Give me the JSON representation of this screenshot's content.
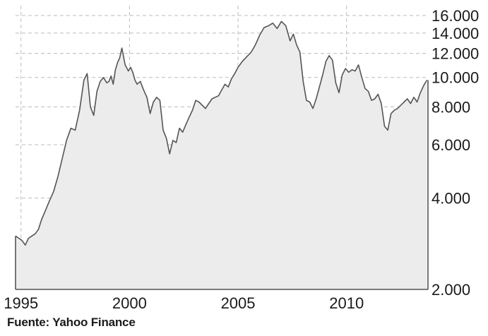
{
  "source": "Fuente: Yahoo Finance",
  "chart_data": {
    "type": "area",
    "scale": "log",
    "title": "",
    "xlabel": "",
    "ylabel": "",
    "xlim": [
      1994.75,
      2013.75
    ],
    "ylim": [
      2000,
      16000
    ],
    "grid": true,
    "x_ticks": [
      {
        "value": 1995,
        "label": "1995"
      },
      {
        "value": 2000,
        "label": "2000"
      },
      {
        "value": 2005,
        "label": "2005"
      },
      {
        "value": 2010,
        "label": "2010"
      }
    ],
    "y_ticks": [
      {
        "value": 2000,
        "label": "2.000"
      },
      {
        "value": 4000,
        "label": "4.000"
      },
      {
        "value": 6000,
        "label": "6.000"
      },
      {
        "value": 8000,
        "label": "8.000"
      },
      {
        "value": 10000,
        "label": "10.000"
      },
      {
        "value": 12000,
        "label": "12.000"
      },
      {
        "value": 14000,
        "label": "14.000"
      },
      {
        "value": 16000,
        "label": "16.000"
      }
    ],
    "colors": {
      "line": "#555555",
      "fill": "#ececec",
      "grid": "#bbbbbb",
      "axis": "#333333"
    },
    "series": [
      {
        "x": [
          1994.75,
          1994.9,
          1995.05,
          1995.2,
          1995.35,
          1995.5,
          1995.65,
          1995.8,
          1995.95,
          1996.1,
          1996.3,
          1996.5,
          1996.7,
          1996.9,
          1997.1,
          1997.3,
          1997.5,
          1997.7,
          1997.9,
          1998.05,
          1998.2,
          1998.35,
          1998.5,
          1998.65,
          1998.8,
          1998.95,
          1999.05,
          1999.15,
          1999.25,
          1999.35,
          1999.45,
          1999.55,
          1999.65,
          1999.8,
          1999.95,
          2000.05,
          2000.15,
          2000.25,
          2000.35,
          2000.5,
          2000.65,
          2000.8,
          2000.95,
          2001.1,
          2001.25,
          2001.4,
          2001.55,
          2001.7,
          2001.85,
          2002.0,
          2002.15,
          2002.3,
          2002.45,
          2002.6,
          2002.75,
          2002.9,
          2003.05,
          2003.2,
          2003.35,
          2003.5,
          2003.65,
          2003.8,
          2003.95,
          2004.1,
          2004.25,
          2004.4,
          2004.55,
          2004.7,
          2004.85,
          2005.0,
          2005.2,
          2005.4,
          2005.6,
          2005.8,
          2006.0,
          2006.2,
          2006.4,
          2006.6,
          2006.8,
          2007.0,
          2007.2,
          2007.4,
          2007.55,
          2007.7,
          2007.85,
          2008.0,
          2008.15,
          2008.3,
          2008.45,
          2008.6,
          2008.75,
          2008.9,
          2009.05,
          2009.2,
          2009.35,
          2009.5,
          2009.65,
          2009.8,
          2009.95,
          2010.1,
          2010.25,
          2010.4,
          2010.55,
          2010.7,
          2010.85,
          2011.0,
          2011.15,
          2011.3,
          2011.45,
          2011.6,
          2011.75,
          2011.9,
          2012.05,
          2012.2,
          2012.35,
          2012.5,
          2012.65,
          2012.8,
          2012.95,
          2013.1,
          2013.25,
          2013.4,
          2013.55,
          2013.7
        ],
        "values": [
          3000,
          2950,
          2900,
          2800,
          2950,
          3000,
          3050,
          3150,
          3400,
          3600,
          3900,
          4200,
          4700,
          5400,
          6200,
          6800,
          6700,
          7800,
          9800,
          10300,
          8000,
          7500,
          9000,
          9700,
          10000,
          9600,
          9700,
          10100,
          9500,
          10600,
          11200,
          11600,
          12500,
          11000,
          10500,
          10800,
          10400,
          9800,
          9500,
          9700,
          9100,
          8600,
          7600,
          8300,
          8600,
          8400,
          6700,
          6300,
          5600,
          6200,
          6100,
          6800,
          6600,
          7000,
          7400,
          7800,
          8400,
          8300,
          8100,
          7900,
          8200,
          8500,
          8600,
          8700,
          9100,
          9500,
          9300,
          9900,
          10300,
          10800,
          11300,
          11700,
          12100,
          12800,
          13800,
          14600,
          14800,
          15100,
          14500,
          15300,
          14800,
          13200,
          13900,
          12800,
          12100,
          9700,
          8400,
          8300,
          7900,
          8500,
          9300,
          10200,
          11300,
          11800,
          11400,
          9600,
          8900,
          10200,
          10700,
          10400,
          10600,
          10500,
          11000,
          10000,
          9200,
          9000,
          8400,
          8500,
          8800,
          8200,
          6900,
          6700,
          7600,
          7800,
          7900,
          8100,
          8300,
          8500,
          8200,
          8600,
          8300,
          8900,
          9400,
          9800
        ]
      }
    ]
  }
}
